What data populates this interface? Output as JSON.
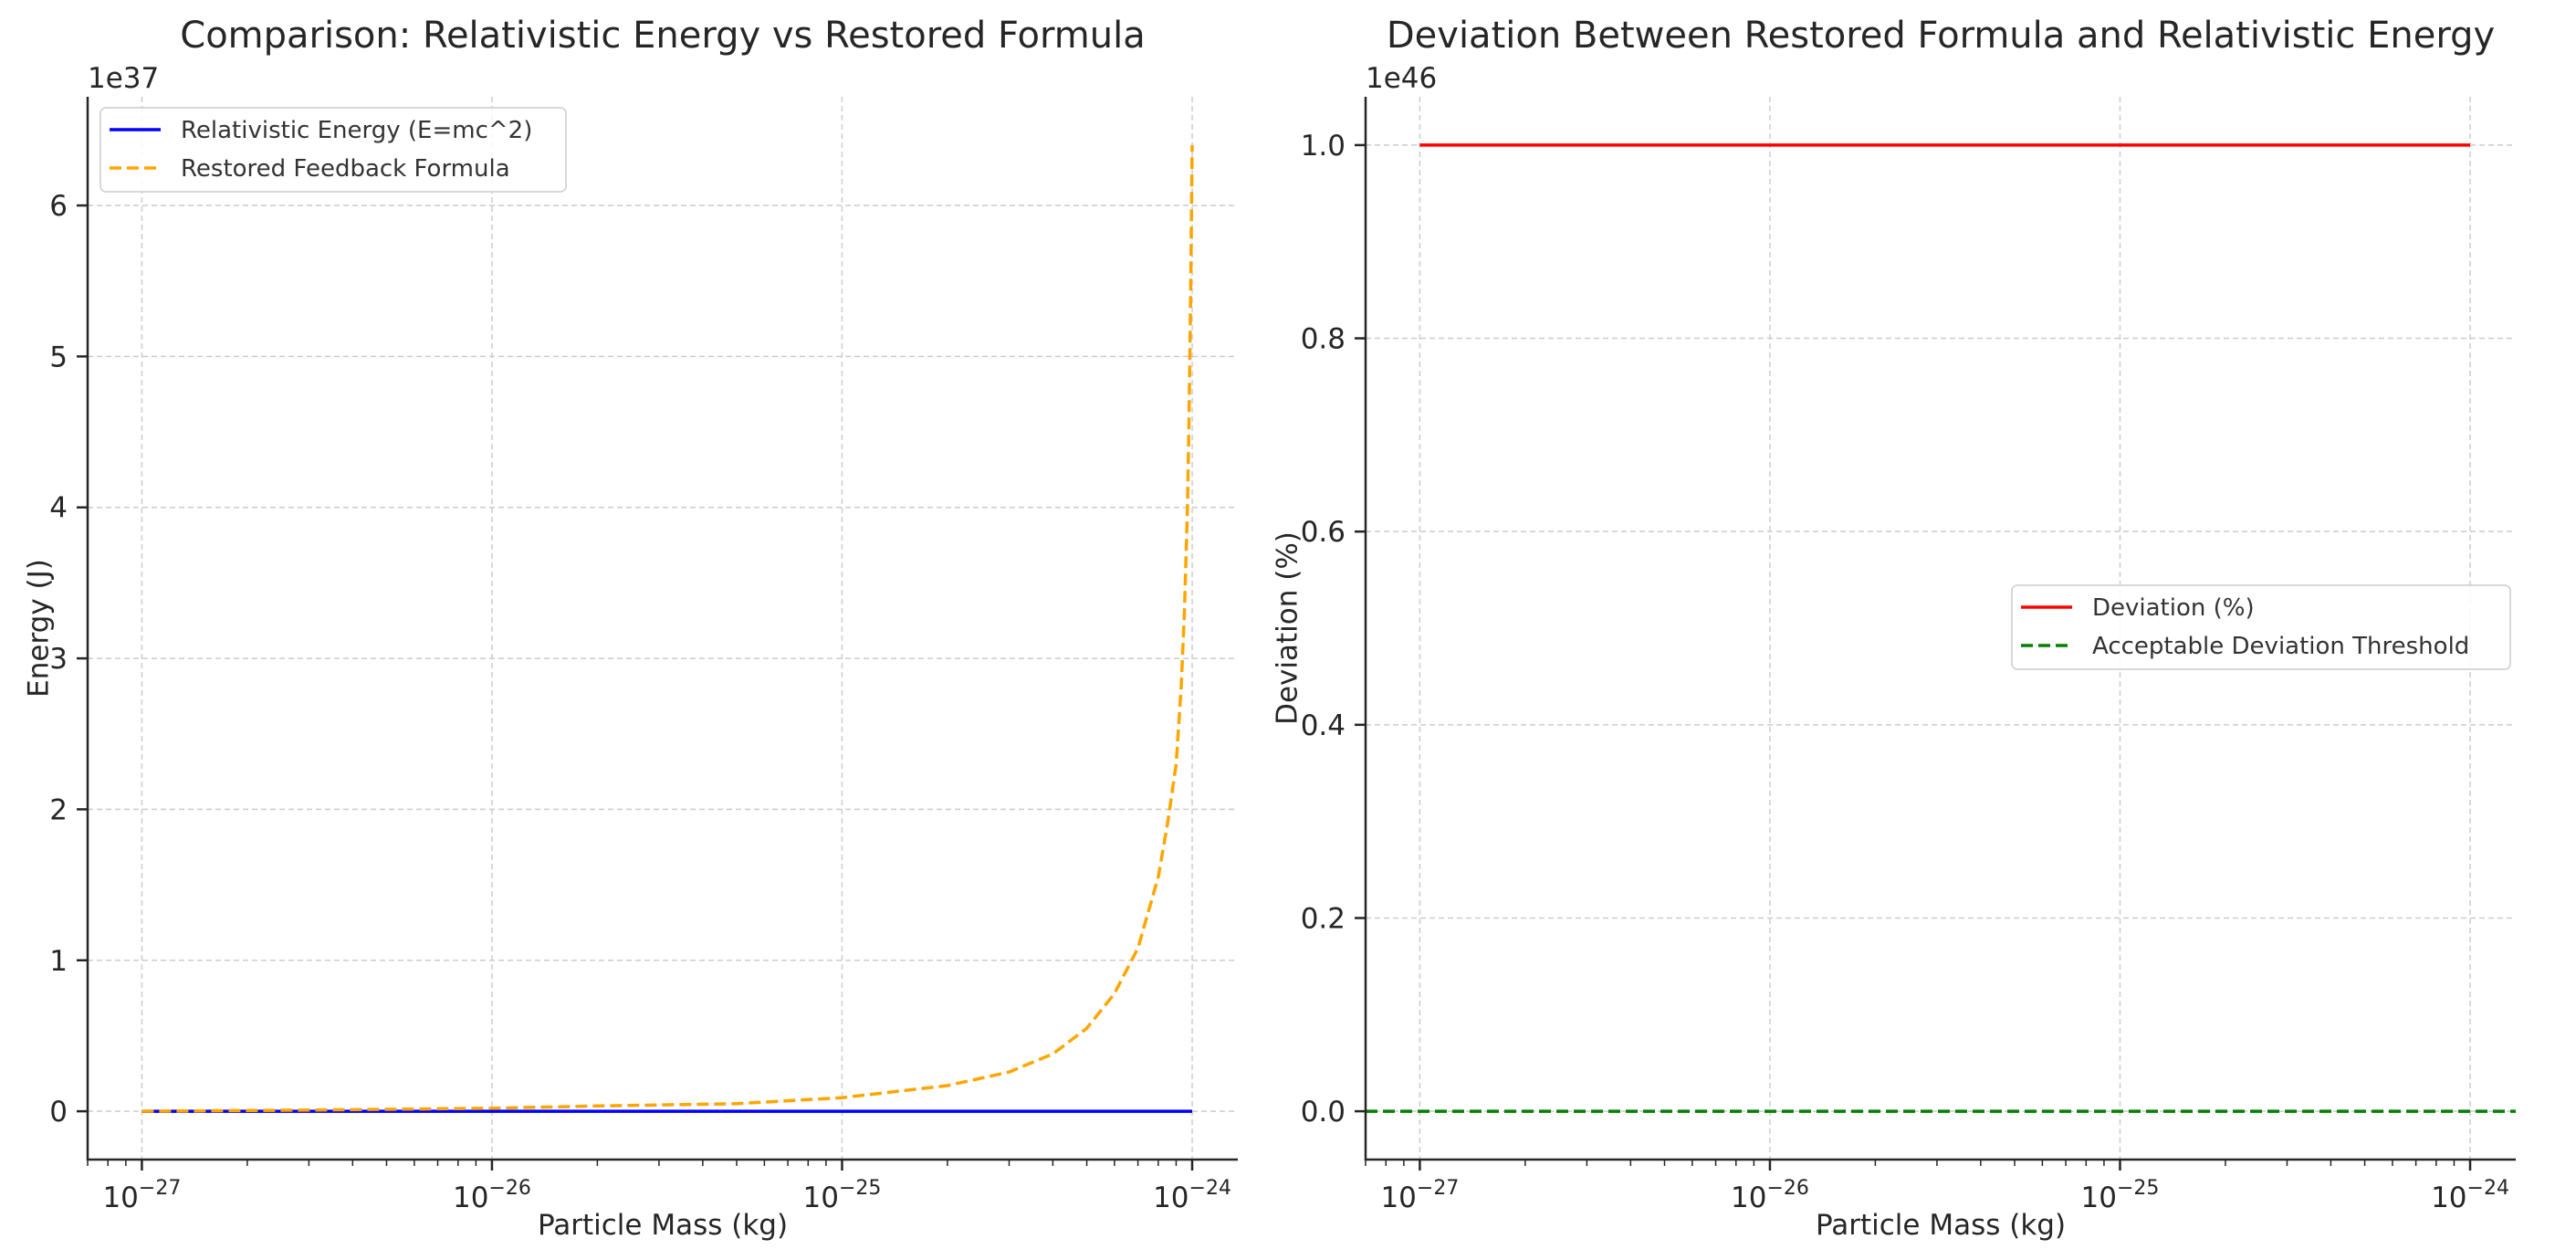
{
  "chart_data": [
    {
      "type": "line",
      "title": "Comparison: Relativistic Energy vs Restored Formula",
      "xlabel": "Particle Mass (kg)",
      "ylabel": "Energy (J)",
      "y_multiplier": "1e37",
      "xscale": "log",
      "xlim": [
        7e-28,
        1.35e-24
      ],
      "ylim": [
        -0.32,
        6.72
      ],
      "x_ticks": [
        {
          "value": 1e-27,
          "base": "10",
          "exp": "−27"
        },
        {
          "value": 1e-26,
          "base": "10",
          "exp": "−26"
        },
        {
          "value": 1e-25,
          "base": "10",
          "exp": "−25"
        },
        {
          "value": 1e-24,
          "base": "10",
          "exp": "−24"
        }
      ],
      "y_ticks": [
        {
          "value": 0,
          "label": "0"
        },
        {
          "value": 1,
          "label": "1"
        },
        {
          "value": 2,
          "label": "2"
        },
        {
          "value": 3,
          "label": "3"
        },
        {
          "value": 4,
          "label": "4"
        },
        {
          "value": 5,
          "label": "5"
        },
        {
          "value": 6,
          "label": "6"
        }
      ],
      "grid": true,
      "legend_position": "upper-left",
      "series": [
        {
          "name": "Relativistic Energy (E=mc^2)",
          "color": "#0000ff",
          "style": "solid",
          "x": [
            1e-27,
            1e-24
          ],
          "y": [
            0,
            0
          ]
        },
        {
          "name": "Restored Feedback Formula",
          "color": "#ffa500",
          "style": "dashed",
          "x": [
            1e-27,
            3e-27,
            1e-26,
            2e-26,
            5e-26,
            1e-25,
            2e-25,
            3e-25,
            4e-25,
            5e-25,
            6e-25,
            7e-25,
            8e-25,
            8.5e-25,
            9e-25,
            9.3e-25,
            9.5e-25,
            9.7e-25,
            9.8e-25,
            9.9e-25,
            1e-24
          ],
          "y": [
            0.0,
            0.008,
            0.02,
            0.035,
            0.05,
            0.09,
            0.17,
            0.26,
            0.38,
            0.55,
            0.78,
            1.08,
            1.55,
            1.9,
            2.3,
            2.8,
            3.3,
            4.0,
            4.6,
            5.4,
            6.4
          ]
        }
      ]
    },
    {
      "type": "line",
      "title": "Deviation Between Restored Formula and Relativistic Energy",
      "xlabel": "Particle Mass (kg)",
      "ylabel": "Deviation (%)",
      "y_multiplier": "1e46",
      "xscale": "log",
      "xlim": [
        7e-28,
        1.35e-24
      ],
      "ylim": [
        -0.05,
        1.05
      ],
      "x_ticks": [
        {
          "value": 1e-27,
          "base": "10",
          "exp": "−27"
        },
        {
          "value": 1e-26,
          "base": "10",
          "exp": "−26"
        },
        {
          "value": 1e-25,
          "base": "10",
          "exp": "−25"
        },
        {
          "value": 1e-24,
          "base": "10",
          "exp": "−24"
        }
      ],
      "y_ticks": [
        {
          "value": 0,
          "label": "0.0"
        },
        {
          "value": 0.2,
          "label": "0.2"
        },
        {
          "value": 0.4,
          "label": "0.4"
        },
        {
          "value": 0.6,
          "label": "0.6"
        },
        {
          "value": 0.8,
          "label": "0.8"
        },
        {
          "value": 1.0,
          "label": "1.0"
        }
      ],
      "grid": true,
      "legend_position": "center-right",
      "series": [
        {
          "name": "Deviation (%)",
          "color": "#ff0000",
          "style": "solid",
          "x": [
            1e-27,
            1e-24
          ],
          "y": [
            1.0,
            1.0
          ]
        },
        {
          "name": "Acceptable Deviation Threshold",
          "color": "#008000",
          "style": "dashed",
          "span": "full-width",
          "x": [
            7e-28,
            1.35e-24
          ],
          "y": [
            0,
            0
          ]
        }
      ]
    }
  ]
}
